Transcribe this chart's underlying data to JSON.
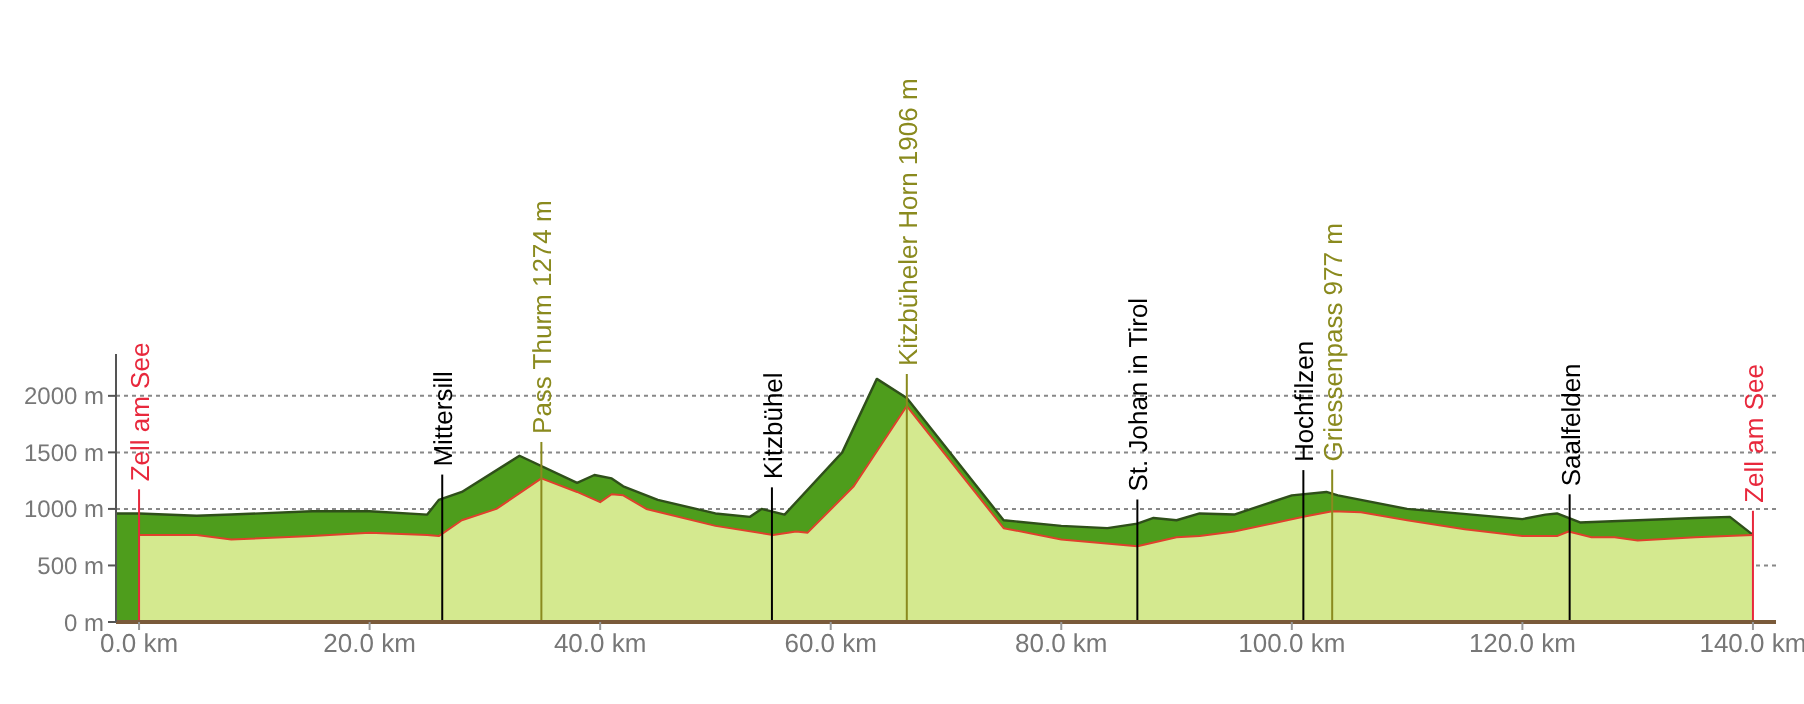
{
  "chart_data": {
    "type": "area",
    "series": [
      {
        "color": "#4e9d1c",
        "x": [
          -2,
          0,
          5,
          8,
          15,
          20,
          25,
          26,
          28,
          33,
          38,
          39.5,
          41,
          42,
          45,
          50,
          53,
          54,
          56,
          61,
          64,
          66.6,
          75,
          80,
          84,
          86.6,
          88,
          90,
          92,
          95,
          100,
          103,
          104,
          110,
          120,
          122,
          123,
          125,
          130,
          135,
          138,
          140
        ],
        "values": [
          960,
          960,
          940,
          950,
          980,
          980,
          950,
          1080,
          1150,
          1470,
          1230,
          1300,
          1270,
          1200,
          1080,
          960,
          930,
          1000,
          950,
          1500,
          2150,
          1980,
          900,
          850,
          830,
          870,
          920,
          900,
          960,
          950,
          1120,
          1150,
          1120,
          1000,
          910,
          950,
          960,
          880,
          900,
          920,
          930,
          770
        ]
      },
      {
        "color": "#d4e98f",
        "x": [
          0,
          5,
          8,
          15,
          20,
          25,
          26,
          28,
          31,
          34.9,
          38,
          40,
          41,
          42,
          44,
          50,
          55,
          57,
          58,
          62,
          66.6,
          75,
          80,
          86.6,
          90,
          92,
          95,
          101,
          103.5,
          106,
          110,
          115,
          120,
          123,
          124,
          126,
          128,
          130,
          135,
          140
        ],
        "values": [
          770,
          770,
          730,
          760,
          790,
          770,
          760,
          900,
          1000,
          1270,
          1150,
          1060,
          1130,
          1120,
          1000,
          850,
          770,
          800,
          790,
          1200,
          1910,
          830,
          730,
          670,
          750,
          760,
          800,
          930,
          980,
          970,
          900,
          820,
          760,
          760,
          800,
          750,
          750,
          720,
          750,
          770
        ]
      }
    ],
    "ref_lines": [
      {
        "axis": "x",
        "value": 0,
        "label": "Zell am See",
        "color": "#e8283c"
      },
      {
        "axis": "x",
        "value": 26.3,
        "label": "Mittersill",
        "color": "#000000"
      },
      {
        "axis": "x",
        "value": 34.9,
        "label": "Pass Thurm 1274 m",
        "color": "#8a8a1e"
      },
      {
        "axis": "x",
        "value": 54.9,
        "label": "Kitzbühel",
        "color": "#000000"
      },
      {
        "axis": "x",
        "value": 66.6,
        "label": "Kitzbüheler Horn 1906 m",
        "color": "#8a8a1e"
      },
      {
        "axis": "x",
        "value": 86.6,
        "label": "St. Johan in Tirol",
        "color": "#000000"
      },
      {
        "axis": "x",
        "value": 101,
        "label": "Hochfilzen",
        "color": "#000000"
      },
      {
        "axis": "x",
        "value": 103.5,
        "label": "Griessenpass 977 m",
        "color": "#8a8a1e"
      },
      {
        "axis": "x",
        "value": 124.1,
        "label": "Saalfelden",
        "color": "#000000"
      },
      {
        "axis": "x",
        "value": 140,
        "label": "Zell am See",
        "color": "#e8283c"
      }
    ],
    "xlim": [
      -2,
      142
    ],
    "ylim": [
      0,
      2370
    ],
    "xticks": [
      {
        "value": 0,
        "label": "0.0 km"
      },
      {
        "value": 20,
        "label": "20.0 km"
      },
      {
        "value": 40,
        "label": "40.0 km"
      },
      {
        "value": 60,
        "label": "60.0 km"
      },
      {
        "value": 80,
        "label": "80.0 km"
      },
      {
        "value": 100,
        "label": "100.0 km"
      },
      {
        "value": 120,
        "label": "120.0 km"
      },
      {
        "value": 140,
        "label": "140.0 km"
      }
    ],
    "yticks": [
      {
        "value": 0,
        "label": "0 m"
      },
      {
        "value": 500,
        "label": "500 m"
      },
      {
        "value": 1000,
        "label": "1000 m"
      },
      {
        "value": 1500,
        "label": "1500 m"
      },
      {
        "value": 2000,
        "label": "2000 m"
      }
    ],
    "grid": "y"
  }
}
